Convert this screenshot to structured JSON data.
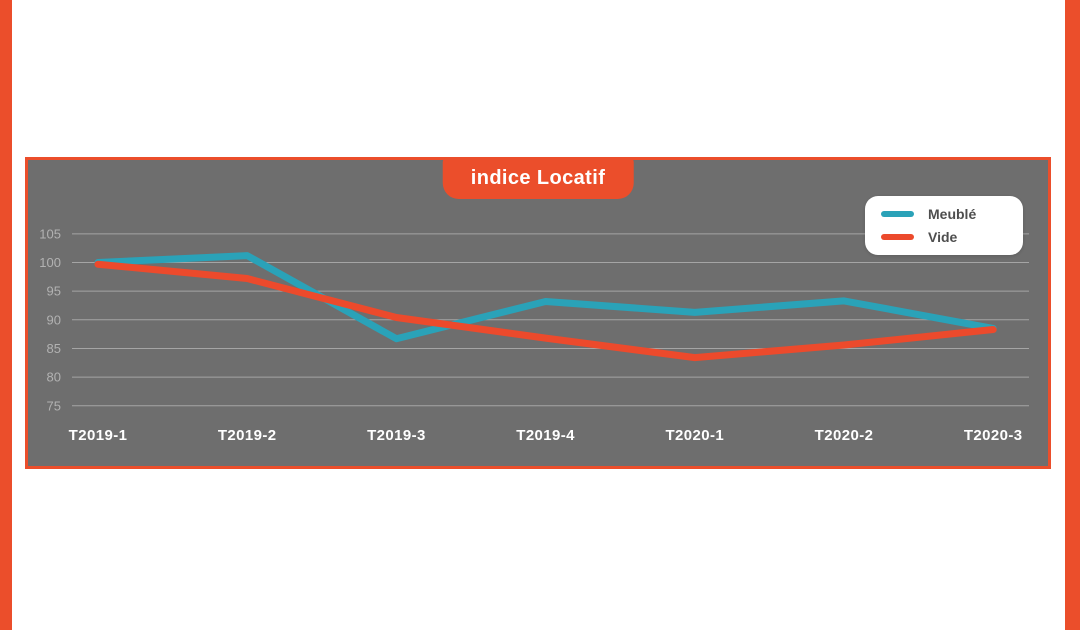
{
  "theme": {
    "accent_color": "#EB4E2B",
    "page_background": "#FFFFFF",
    "chart_background": "#6E6E6E",
    "chart_border_color": "#EB4E2B",
    "gridline_color": "rgba(255,255,255,0.38)",
    "y_label_color": "#B2B2B2",
    "x_label_color": "#FFFFFF",
    "title_text_color": "#FFFFFF",
    "legend_background": "#FFFFFF",
    "legend_text_color": "#4E4E4E",
    "series_meuble_color": "#2AA2B8",
    "series_vide_color": "#EC4A2C"
  },
  "chart_data": {
    "type": "line",
    "title": "indice Locatif",
    "categories": [
      "T2019-1",
      "T2019-2",
      "T2019-3",
      "T2019-4",
      "T2020-1",
      "T2020-2",
      "T2020-3"
    ],
    "series": [
      {
        "name": "Meublé",
        "color": "#2AA2B8",
        "values": [
          100,
          101.2,
          86.7,
          93.2,
          91.3,
          93.3,
          88.5
        ]
      },
      {
        "name": "Vide",
        "color": "#EC4A2C",
        "values": [
          99.7,
          97.2,
          90.4,
          86.8,
          83.4,
          85.6,
          88.3
        ]
      }
    ],
    "yticks": [
      75,
      80,
      85,
      90,
      95,
      100,
      105
    ],
    "ylim": [
      72,
      107
    ],
    "grid": true,
    "legend_position": "top-right"
  }
}
